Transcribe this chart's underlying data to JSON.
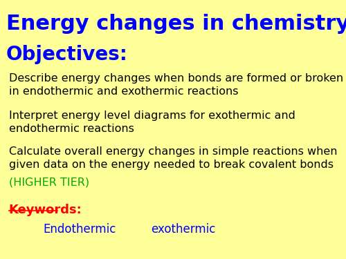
{
  "background_color": "#FFFF99",
  "title": "Energy changes in chemistry",
  "title_color": "#0000FF",
  "title_fontsize": 22,
  "objectives_label": "Objectives:",
  "objectives_color": "#0000FF",
  "objectives_fontsize": 20,
  "bullet1_line1": "Describe energy changes when bonds are formed or broken",
  "bullet1_line2": "in endothermic and exothermic reactions",
  "bullet2_line1": "Interpret energy level diagrams for exothermic and",
  "bullet2_line2": "endothermic reactions",
  "bullet3_line1": "Calculate overall energy changes in simple reactions when",
  "bullet3_line2": "given data on the energy needed to break covalent bonds",
  "bullet3_line3": "(HIGHER TIER)",
  "bullet_color": "#000000",
  "higher_tier_color": "#00AA00",
  "bullet_fontsize": 11.5,
  "keywords_label": "Keywords:",
  "keywords_color": "#FF0000",
  "keywords_fontsize": 13,
  "keyword1": "Endothermic",
  "keyword2": "exothermic",
  "keywords_text_color": "#0000FF",
  "keywords_text_fontsize": 12
}
